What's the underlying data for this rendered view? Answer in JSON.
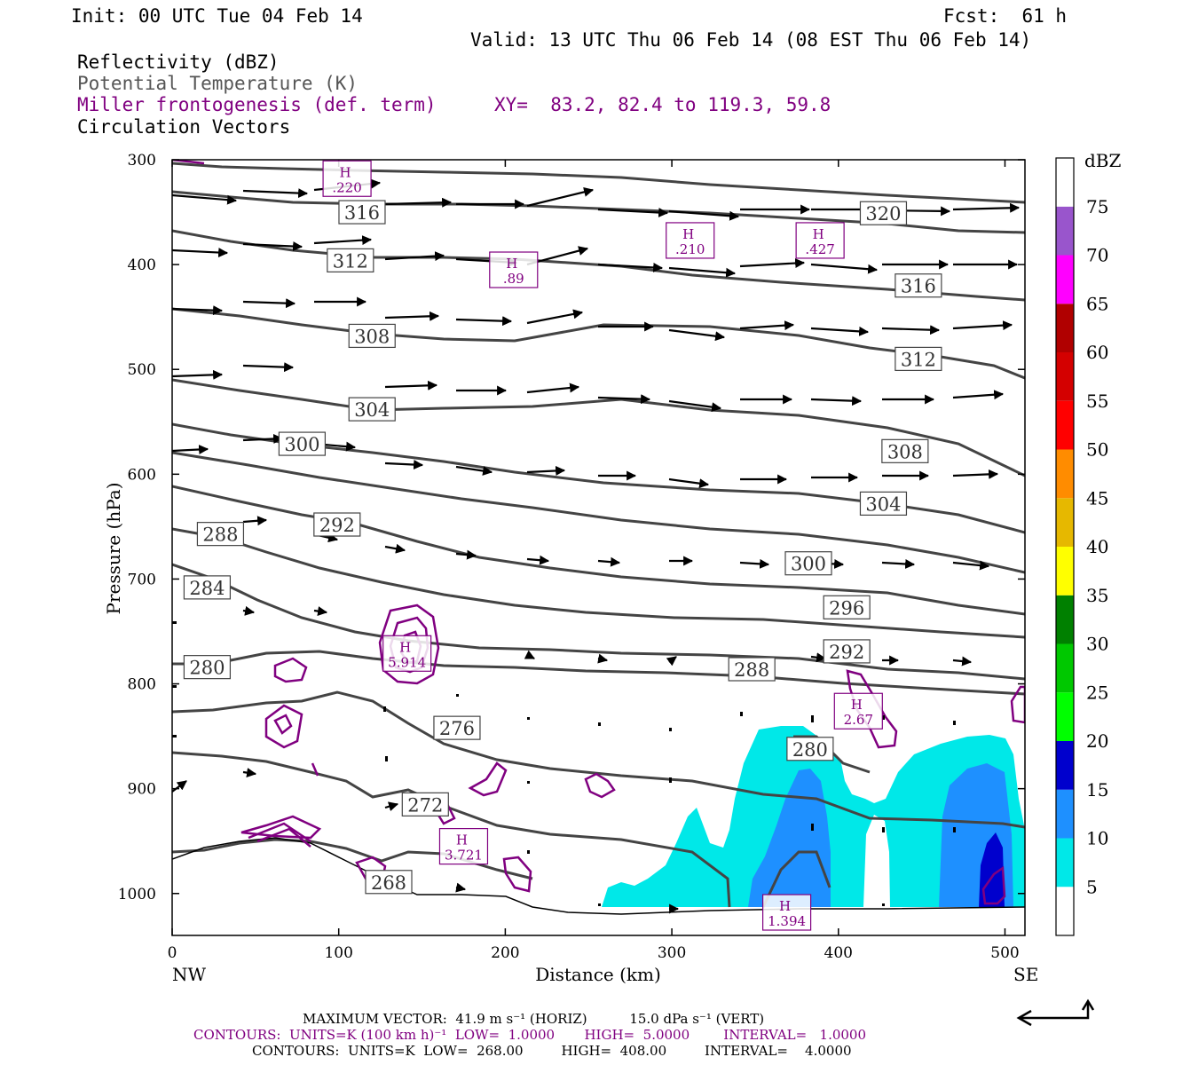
{
  "header": {
    "init": "Init: 00 UTC Tue 04 Feb 14",
    "fcst": "Fcst:  61 h",
    "valid": "Valid: 13 UTC Thu 06 Feb 14 (08 EST Thu 06 Feb 14)",
    "field1": "Reflectivity (dBZ)",
    "field2": "Potential Temperature (K)",
    "field3": "Miller frontogenesis (def. term)",
    "xy": "XY=  83.2, 82.4 to 119.3, 59.8",
    "field4": "Circulation Vectors"
  },
  "colors": {
    "theta": "#444444",
    "fronto": "#800080",
    "refl_5": "#00e8e8",
    "refl_10": "#1e90ff",
    "refl_15": "#0000cd"
  },
  "chart_data": {
    "type": "contour-cross-section",
    "xlabel": "Distance (km)",
    "ylabel": "Pressure (hPa)",
    "xlim": [
      0,
      512
    ],
    "ylim": [
      1040,
      300
    ],
    "x_ticks": [
      "0",
      "100",
      "200",
      "300",
      "400",
      "500"
    ],
    "y_ticks": [
      "300",
      "400",
      "500",
      "600",
      "700",
      "800",
      "900",
      "1000"
    ],
    "left_end_label": "NW",
    "right_end_label": "SE",
    "colorbar": {
      "unit": "dBZ",
      "levels": [
        "5",
        "10",
        "15",
        "20",
        "25",
        "30",
        "35",
        "40",
        "45",
        "50",
        "55",
        "60",
        "65",
        "70",
        "75"
      ],
      "colors": [
        "#00e8e8",
        "#1e90ff",
        "#0000cd",
        "#00ff00",
        "#00c800",
        "#008000",
        "#ffff00",
        "#e6b800",
        "#ff8c00",
        "#ff0000",
        "#d40000",
        "#b00000",
        "#ff00ff",
        "#9955cc",
        "#ffffff"
      ]
    },
    "theta_labels": [
      {
        "v": "316",
        "x": 114,
        "p": 350
      },
      {
        "v": "312",
        "x": 107,
        "p": 396
      },
      {
        "v": "308",
        "x": 120,
        "p": 468
      },
      {
        "v": "304",
        "x": 120,
        "p": 538
      },
      {
        "v": "300",
        "x": 78,
        "p": 571
      },
      {
        "v": "292",
        "x": 99,
        "p": 648
      },
      {
        "v": "288",
        "x": 29,
        "p": 657
      },
      {
        "v": "284",
        "x": 21,
        "p": 708
      },
      {
        "v": "280",
        "x": 21,
        "p": 784
      },
      {
        "v": "276",
        "x": 171,
        "p": 842
      },
      {
        "v": "272",
        "x": 152,
        "p": 915
      },
      {
        "v": "268",
        "x": 130,
        "p": 989
      },
      {
        "v": "320",
        "x": 427,
        "p": 351
      },
      {
        "v": "316",
        "x": 448,
        "p": 420
      },
      {
        "v": "312",
        "x": 448,
        "p": 490
      },
      {
        "v": "308",
        "x": 440,
        "p": 578
      },
      {
        "v": "304",
        "x": 427,
        "p": 628
      },
      {
        "v": "300",
        "x": 382,
        "p": 685
      },
      {
        "v": "296",
        "x": 405,
        "p": 727
      },
      {
        "v": "292",
        "x": 405,
        "p": 769
      },
      {
        "v": "288",
        "x": 348,
        "p": 786
      },
      {
        "v": "280",
        "x": 383,
        "p": 862
      }
    ],
    "fronto_maxima": [
      {
        "v": ".220",
        "x": 105,
        "p": 318
      },
      {
        "v": ".210",
        "x": 311,
        "p": 377
      },
      {
        "v": ".427",
        "x": 389,
        "p": 377
      },
      {
        "v": ".89",
        "x": 205,
        "p": 405
      },
      {
        "v": "5.914",
        "x": 141,
        "p": 771
      },
      {
        "v": "2.67",
        "x": 412,
        "p": 826
      },
      {
        "v": "3.721",
        "x": 175,
        "p": 955
      },
      {
        "v": "1.394",
        "x": 369,
        "p": 1018
      }
    ]
  },
  "footer": {
    "max_vector": "MAXIMUM VECTOR:  41.9 m s⁻¹ (HORIZ)          15.0 dPa s⁻¹ (VERT)",
    "contours1": "CONTOURS:  UNITS=K (100 km h)⁻¹  LOW=  1.0000       HIGH=  5.0000        INTERVAL=   1.0000",
    "contours2": "CONTOURS:  UNITS=K  LOW=  268.00         HIGH=  408.00         INTERVAL=    4.0000"
  }
}
